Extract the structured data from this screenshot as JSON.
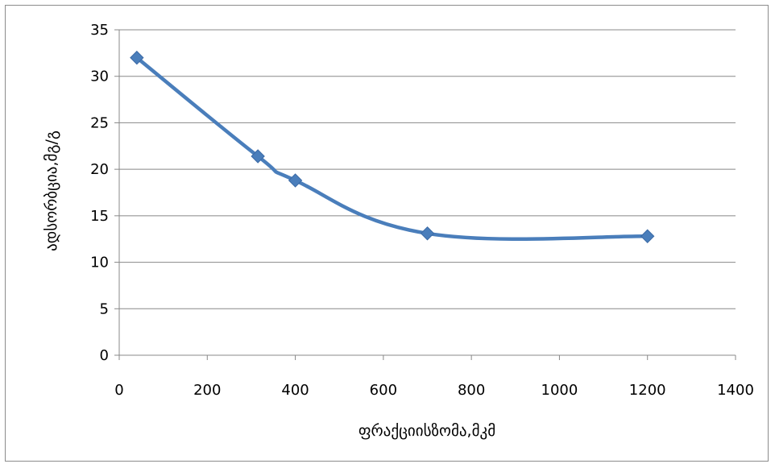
{
  "chart_data": {
    "type": "line",
    "title": "",
    "xlabel": "ფრაქციისზომა,მკმ",
    "ylabel": "ადსორბცია,მგ/გ",
    "xlim": [
      0,
      1400
    ],
    "ylim": [
      0,
      35
    ],
    "xticks": [
      0,
      200,
      400,
      600,
      800,
      1000,
      1200,
      1400
    ],
    "yticks": [
      0,
      5,
      10,
      15,
      20,
      25,
      30,
      35
    ],
    "grid": {
      "horizontal": true,
      "vertical": false
    },
    "legend": "none",
    "smooth": true,
    "marker": "diamond",
    "series": [
      {
        "color": "#4a7ebb",
        "x": [
          40,
          315,
          400,
          700,
          1200
        ],
        "y": [
          32.0,
          21.4,
          18.8,
          13.1,
          12.8
        ]
      }
    ]
  }
}
